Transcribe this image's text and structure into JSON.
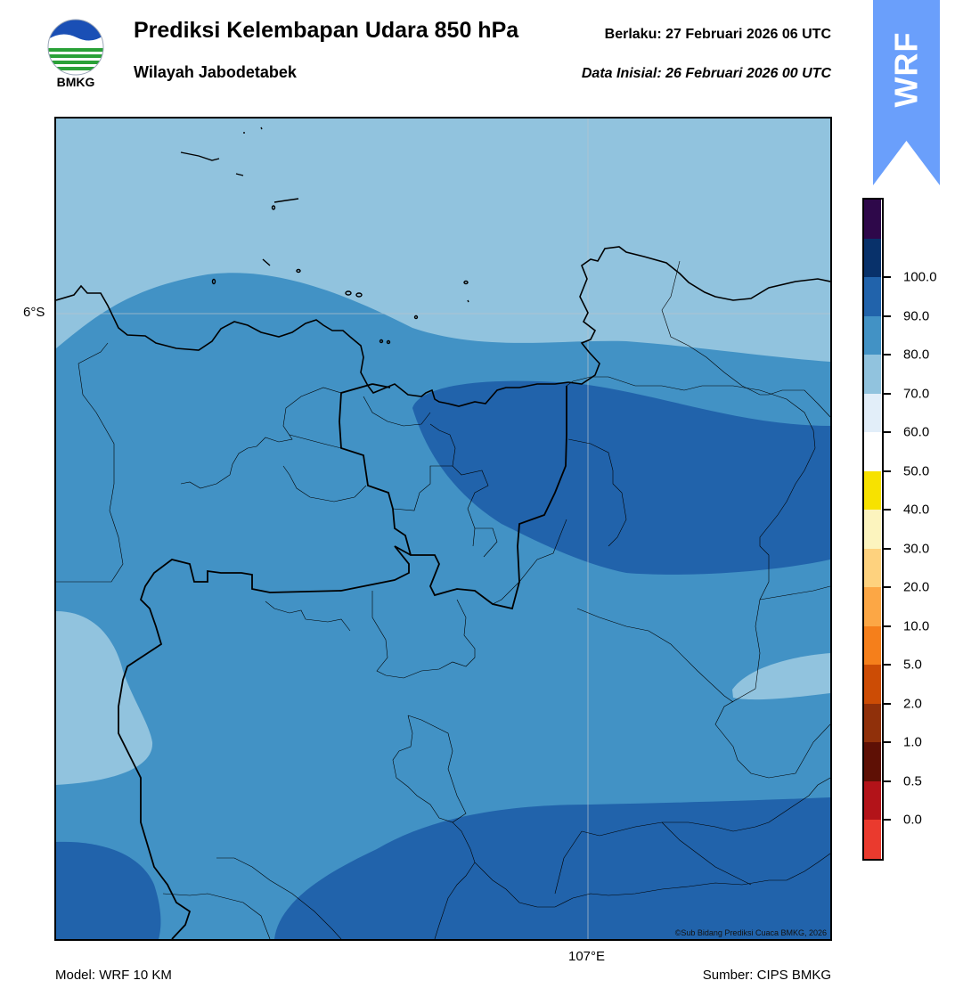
{
  "header": {
    "logo_text": "BMKG",
    "title": "Prediksi Kelembapan Udara 850 hPa",
    "subtitle": "Wilayah Jabodetabek",
    "valid_label": "Berlaku:  27 Februari 2026 06 UTC",
    "initial_label": "Data Inisial:  26 Februari 2026 00 UTC"
  },
  "map": {
    "lat_label": "6°S",
    "lon_label": "107°E",
    "credit": "©Sub Bidang Prediksi Cuaca BMKG, 2026",
    "fill_colors": {
      "60-70": "#91c3de",
      "70-80": "#4292c5",
      "80-90": "#2163ab"
    }
  },
  "footer": {
    "model": "Model: WRF 10 KM",
    "source": "Sumber: CIPS BMKG"
  },
  "wrf_banner": {
    "text": "WRF",
    "color": "#6a9ffb"
  },
  "colorbar": {
    "labels": [
      "0.0",
      "0.5",
      "1.0",
      "2.0",
      "5.0",
      "10.0",
      "20.0",
      "30.0",
      "40.0",
      "50.0",
      "60.0",
      "70.0",
      "80.0",
      "90.0",
      "100.0"
    ],
    "colors": [
      "#ea3a2e",
      "#b31319",
      "#5e1005",
      "#90300a",
      "#cc4c05",
      "#f57f1b",
      "#fca745",
      "#fed27e",
      "#fcf4be",
      "#f7e200",
      "#ffffff",
      "#e2eef9",
      "#91c3de",
      "#4292c5",
      "#2163ab",
      "#08316a",
      "#2e084a"
    ]
  }
}
